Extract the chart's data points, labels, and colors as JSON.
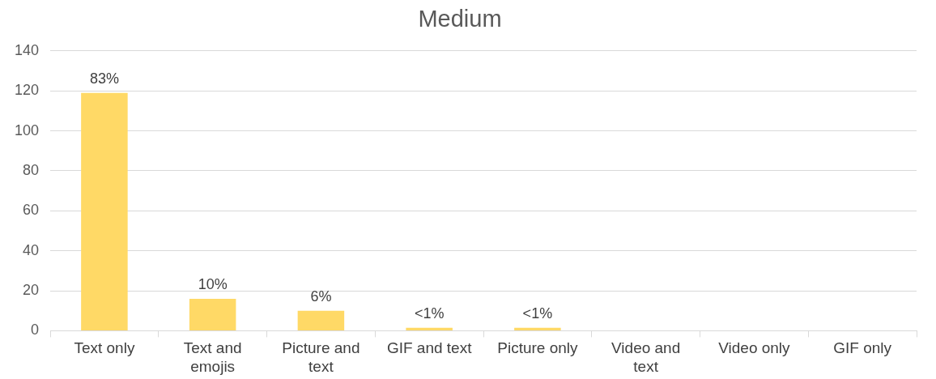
{
  "chart_data": {
    "type": "bar",
    "title": "Medium",
    "categories": [
      "Text only",
      "Text and emojis",
      "Picture and text",
      "GIF and text",
      "Picture only",
      "Video and text",
      "Video only",
      "GIF only"
    ],
    "values": [
      119,
      16,
      10,
      1.5,
      1.5,
      0,
      0,
      0
    ],
    "annotations": [
      {
        "text": "83%",
        "x": "Text only",
        "y": 119
      },
      {
        "text": "10%",
        "x": "Text and emojis",
        "y": 16
      },
      {
        "text": "6%",
        "x": "Picture and text",
        "y": 10
      },
      {
        "text": "<1%",
        "x": "GIF and text",
        "y": 1.5
      },
      {
        "text": "<1%",
        "x": "Picture only",
        "y": 1.5
      }
    ],
    "color": "#ffd966",
    "ylim": [
      0,
      140
    ],
    "yticks": [
      0,
      20,
      40,
      60,
      80,
      100,
      120,
      140
    ],
    "grid": "y",
    "legend": false
  }
}
